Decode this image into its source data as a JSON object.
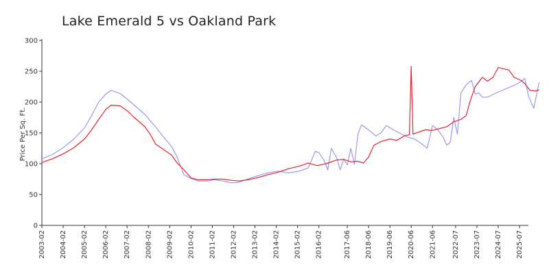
{
  "chart_data": {
    "type": "line",
    "title": "Lake Emerald 5 vs Oakland Park",
    "ylabel": "Price Per Sq. Ft.",
    "xlabel": "",
    "ylim": [
      0,
      300
    ],
    "xlim": [
      "2003-02",
      "2025-12"
    ],
    "y_ticks": [
      0,
      50,
      100,
      150,
      200,
      250,
      300
    ],
    "x_ticks": [
      "2003-02",
      "2004-02",
      "2005-02",
      "2006-02",
      "2007-02",
      "2008-02",
      "2009-02",
      "2010-02",
      "2011-02",
      "2012-02",
      "2013-02",
      "2014-02",
      "2015-02",
      "2016-02",
      "2017-06",
      "2018-06",
      "2019-06",
      "2020-06",
      "2021-06",
      "2022-07",
      "2023-07",
      "2024-07",
      "2025-07"
    ],
    "grid": false,
    "legend": "none",
    "series": [
      {
        "color": "#e8202a",
        "points": [
          [
            "2003-02",
            102
          ],
          [
            "2003-08",
            108
          ],
          [
            "2004-02",
            116
          ],
          [
            "2004-08",
            126
          ],
          [
            "2005-02",
            140
          ],
          [
            "2005-06",
            155
          ],
          [
            "2005-10",
            172
          ],
          [
            "2006-02",
            188
          ],
          [
            "2006-05",
            195
          ],
          [
            "2006-10",
            194
          ],
          [
            "2007-02",
            186
          ],
          [
            "2007-06",
            175
          ],
          [
            "2007-12",
            160
          ],
          [
            "2008-03",
            148
          ],
          [
            "2008-06",
            132
          ],
          [
            "2008-10",
            124
          ],
          [
            "2009-03",
            114
          ],
          [
            "2009-06",
            102
          ],
          [
            "2009-10",
            90
          ],
          [
            "2010-02",
            77
          ],
          [
            "2010-06",
            74
          ],
          [
            "2010-12",
            74
          ],
          [
            "2011-03",
            75
          ],
          [
            "2011-08",
            75
          ],
          [
            "2012-01",
            73
          ],
          [
            "2012-05",
            72
          ],
          [
            "2012-10",
            74
          ],
          [
            "2013-03",
            77
          ],
          [
            "2013-09",
            82
          ],
          [
            "2014-03",
            86
          ],
          [
            "2014-09",
            92
          ],
          [
            "2015-03",
            96
          ],
          [
            "2015-08",
            101
          ],
          [
            "2016-01",
            97
          ],
          [
            "2016-06",
            100
          ],
          [
            "2016-12",
            106
          ],
          [
            "2017-04",
            107
          ],
          [
            "2017-08",
            103
          ],
          [
            "2017-12",
            104
          ],
          [
            "2018-03",
            101
          ],
          [
            "2018-06",
            111
          ],
          [
            "2018-09",
            130
          ],
          [
            "2019-01",
            136
          ],
          [
            "2019-06",
            140
          ],
          [
            "2019-10",
            138
          ],
          [
            "2020-02",
            145
          ],
          [
            "2020-05",
            147
          ],
          [
            "2020-06",
            258
          ],
          [
            "2020-07",
            148
          ],
          [
            "2020-10",
            151
          ],
          [
            "2021-02",
            155
          ],
          [
            "2021-06",
            154
          ],
          [
            "2021-10",
            157
          ],
          [
            "2022-02",
            160
          ],
          [
            "2022-06",
            168
          ],
          [
            "2022-10",
            172
          ],
          [
            "2023-01",
            178
          ],
          [
            "2023-03",
            200
          ],
          [
            "2023-06",
            225
          ],
          [
            "2023-10",
            240
          ],
          [
            "2024-01",
            234
          ],
          [
            "2024-04",
            240
          ],
          [
            "2024-07",
            256
          ],
          [
            "2024-10",
            254
          ],
          [
            "2025-01",
            252
          ],
          [
            "2025-04",
            240
          ],
          [
            "2025-08",
            235
          ],
          [
            "2025-10",
            230
          ],
          [
            "2025-12",
            222
          ],
          [
            "2026-01",
            219
          ],
          [
            "2026-04",
            218
          ],
          [
            "2026-06",
            220
          ]
        ]
      },
      {
        "color": "#9999ee",
        "points": [
          [
            "2003-02",
            108
          ],
          [
            "2003-08",
            115
          ],
          [
            "2004-02",
            126
          ],
          [
            "2004-08",
            140
          ],
          [
            "2005-02",
            158
          ],
          [
            "2005-06",
            178
          ],
          [
            "2005-10",
            200
          ],
          [
            "2006-02",
            213
          ],
          [
            "2006-05",
            219
          ],
          [
            "2006-10",
            214
          ],
          [
            "2007-02",
            205
          ],
          [
            "2007-06",
            195
          ],
          [
            "2007-12",
            180
          ],
          [
            "2008-03",
            170
          ],
          [
            "2008-06",
            160
          ],
          [
            "2008-10",
            145
          ],
          [
            "2009-03",
            128
          ],
          [
            "2009-06",
            112
          ],
          [
            "2009-10",
            82
          ],
          [
            "2010-02",
            76
          ],
          [
            "2010-06",
            72
          ],
          [
            "2010-12",
            72
          ],
          [
            "2011-03",
            74
          ],
          [
            "2011-08",
            72
          ],
          [
            "2012-01",
            69
          ],
          [
            "2012-05",
            70
          ],
          [
            "2012-10",
            75
          ],
          [
            "2013-03",
            80
          ],
          [
            "2013-09",
            85
          ],
          [
            "2014-03",
            88
          ],
          [
            "2014-09",
            85
          ],
          [
            "2015-03",
            88
          ],
          [
            "2015-08",
            93
          ],
          [
            "2015-12",
            120
          ],
          [
            "2016-02",
            118
          ],
          [
            "2016-05",
            105
          ],
          [
            "2016-07",
            90
          ],
          [
            "2016-09",
            125
          ],
          [
            "2016-12",
            110
          ],
          [
            "2017-02",
            90
          ],
          [
            "2017-04",
            108
          ],
          [
            "2017-06",
            98
          ],
          [
            "2017-08",
            125
          ],
          [
            "2017-10",
            99
          ],
          [
            "2017-12",
            148
          ],
          [
            "2018-02",
            163
          ],
          [
            "2018-06",
            155
          ],
          [
            "2018-10",
            145
          ],
          [
            "2019-01",
            150
          ],
          [
            "2019-04",
            162
          ],
          [
            "2019-08",
            155
          ],
          [
            "2019-12",
            149
          ],
          [
            "2020-04",
            143
          ],
          [
            "2020-08",
            140
          ],
          [
            "2020-12",
            132
          ],
          [
            "2021-03",
            125
          ],
          [
            "2021-06",
            162
          ],
          [
            "2021-09",
            155
          ],
          [
            "2021-12",
            143
          ],
          [
            "2022-02",
            130
          ],
          [
            "2022-04",
            135
          ],
          [
            "2022-06",
            175
          ],
          [
            "2022-08",
            148
          ],
          [
            "2022-10",
            215
          ],
          [
            "2023-01",
            228
          ],
          [
            "2023-04",
            235
          ],
          [
            "2023-06",
            213
          ],
          [
            "2023-08",
            215
          ],
          [
            "2023-10",
            208
          ],
          [
            "2024-01",
            208
          ],
          [
            "2024-06",
            215
          ],
          [
            "2024-10",
            220
          ],
          [
            "2025-03",
            226
          ],
          [
            "2025-06",
            230
          ],
          [
            "2025-10",
            238
          ],
          [
            "2025-12",
            210
          ],
          [
            "2026-03",
            190
          ],
          [
            "2026-06",
            232
          ]
        ]
      }
    ]
  }
}
